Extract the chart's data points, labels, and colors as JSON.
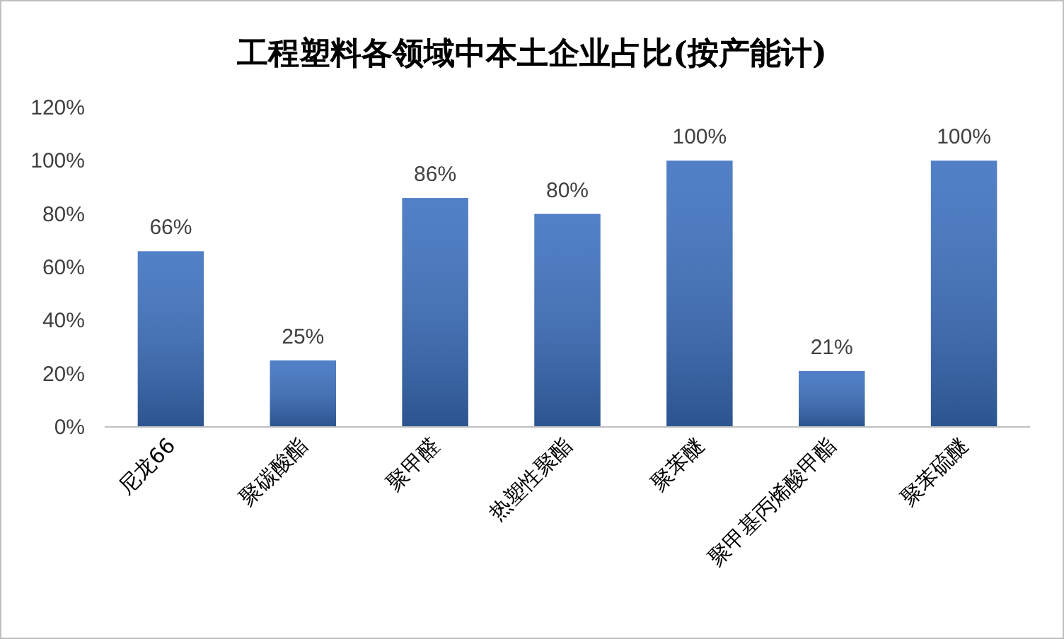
{
  "chart_data": {
    "type": "bar",
    "title": "工程塑料各领域中本土企业占比(按产能计)",
    "categories": [
      "尼龙66",
      "聚碳酸酯",
      "聚甲醛",
      "热塑性聚酯",
      "聚苯醚",
      "聚甲基丙烯酸甲酯",
      "聚苯硫醚"
    ],
    "values": [
      66,
      25,
      86,
      80,
      100,
      21,
      100
    ],
    "value_labels": [
      "66%",
      "25%",
      "86%",
      "80%",
      "100%",
      "21%",
      "100%"
    ],
    "color": "#3a6fbf",
    "ylim": [
      0,
      120
    ],
    "yticks": [
      {
        "value": 0,
        "label": "0%"
      },
      {
        "value": 20,
        "label": "20%"
      },
      {
        "value": 40,
        "label": "40%"
      },
      {
        "value": 60,
        "label": "60%"
      },
      {
        "value": 80,
        "label": "80%"
      },
      {
        "value": 100,
        "label": "100%"
      },
      {
        "value": 120,
        "label": "120%"
      }
    ],
    "grid": false
  }
}
